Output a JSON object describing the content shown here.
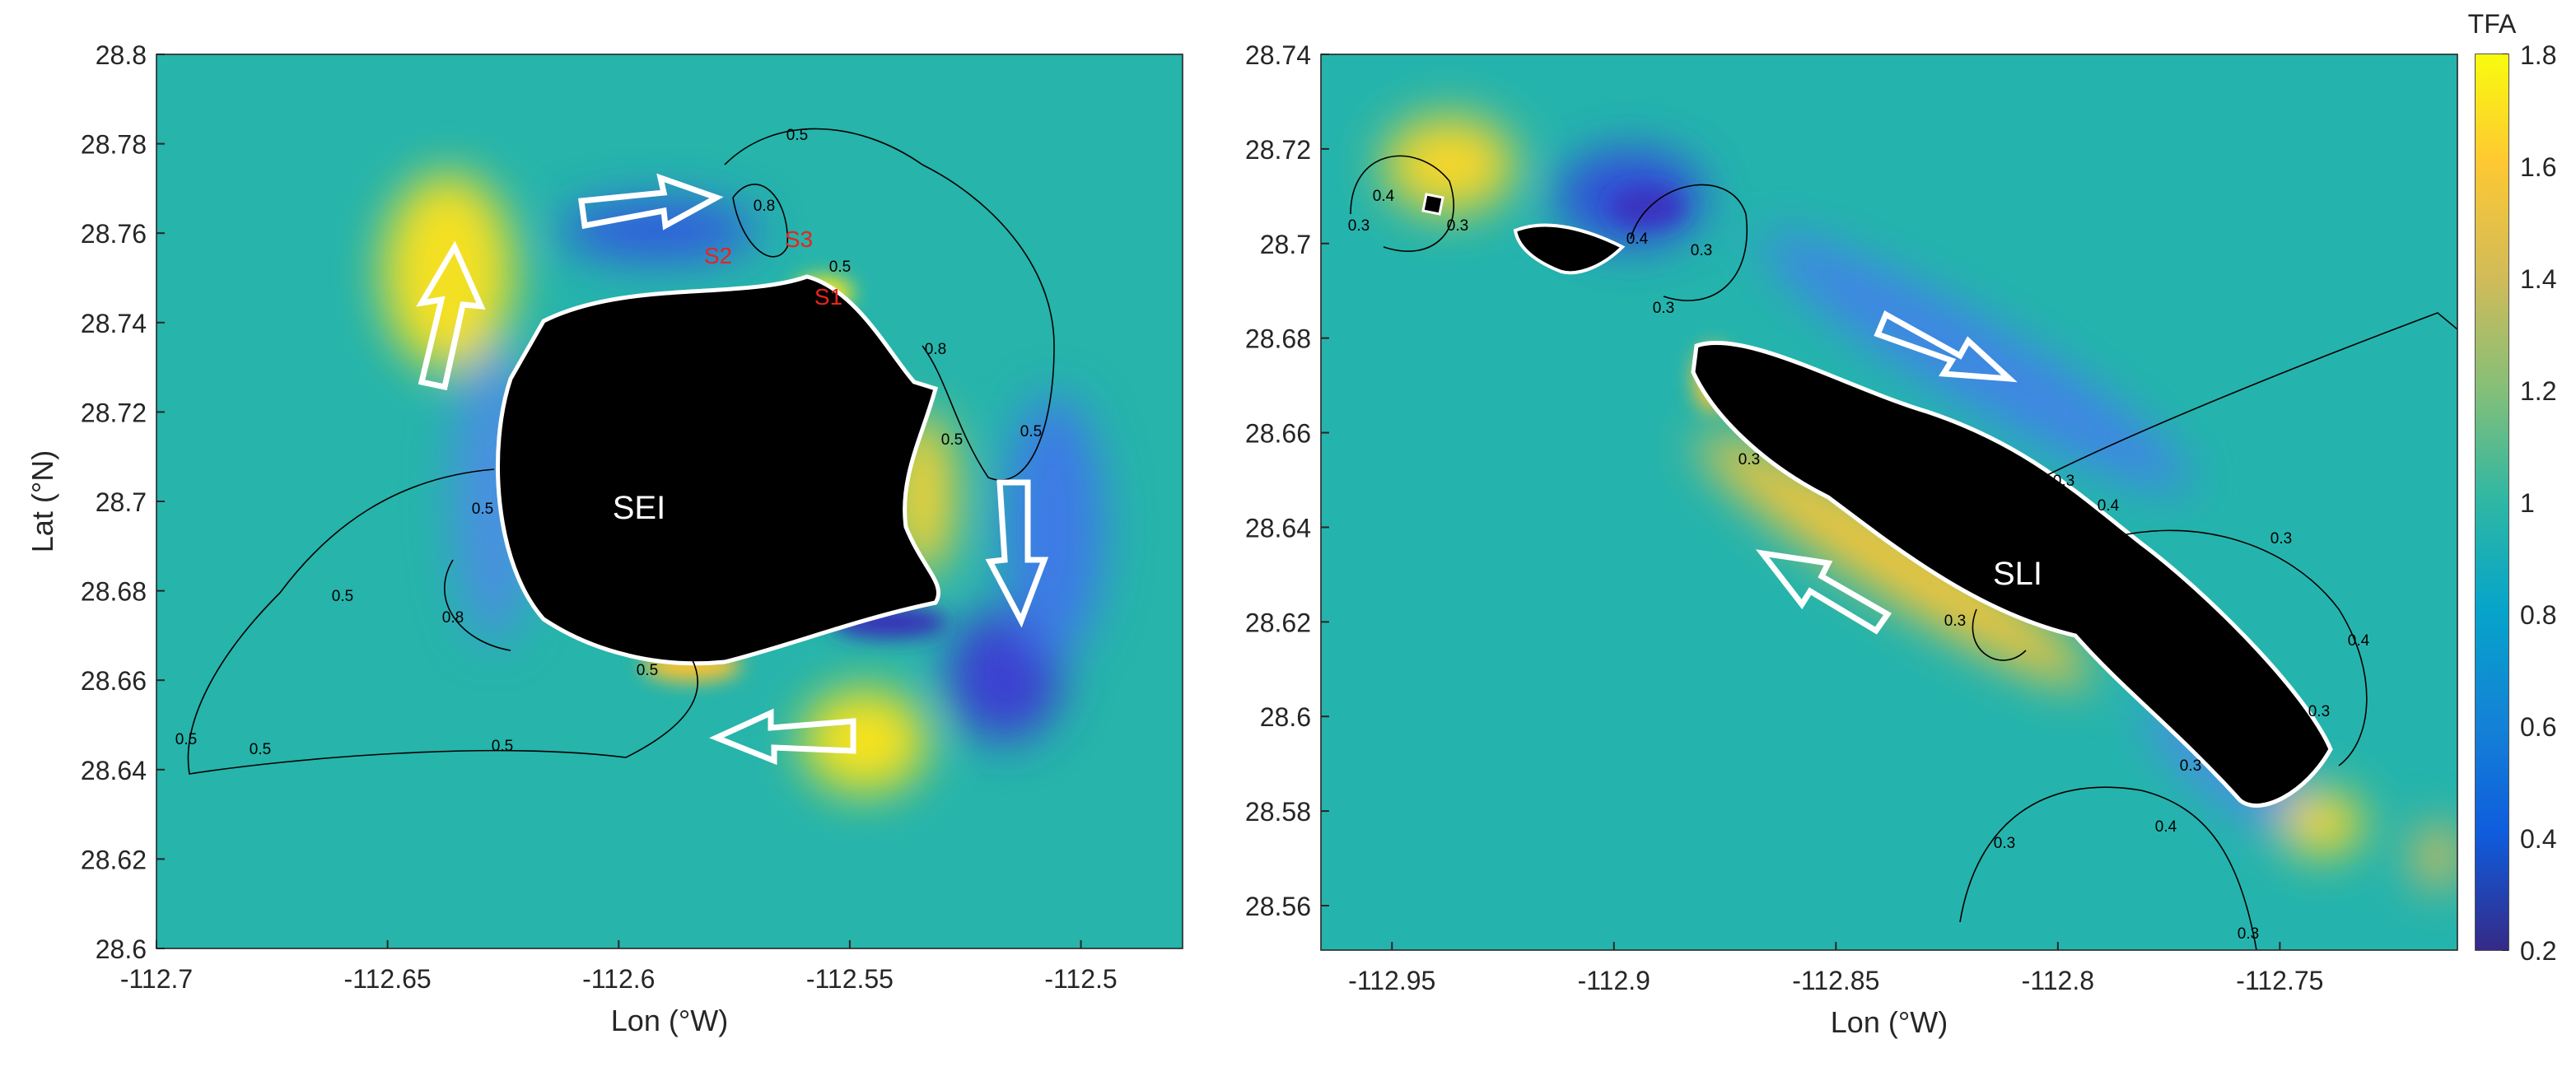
{
  "chart_data": [
    {
      "type": "heatmap",
      "xlabel": "Lon (°W)",
      "ylabel": "Lat (°N)",
      "xlim": [
        -112.7,
        -112.478
      ],
      "xticks": [
        -112.7,
        -112.65,
        -112.6,
        -112.55,
        -112.5
      ],
      "ylim": [
        28.6,
        28.8
      ],
      "yticks": [
        28.6,
        28.62,
        28.64,
        28.66,
        28.68,
        28.7,
        28.72,
        28.74,
        28.76,
        28.78,
        28.8
      ],
      "annotations": [
        "SEI",
        "S1",
        "S2",
        "S3"
      ],
      "contour_labels": [
        0.5,
        0.8,
        0.5,
        0.8,
        0.5,
        0.5,
        0.5,
        0.5,
        0.8,
        0.5,
        0.5,
        0.5,
        0.5
      ]
    },
    {
      "type": "heatmap",
      "xlabel": "Lon (°W)",
      "xlim": [
        -112.966,
        -112.71
      ],
      "xticks": [
        -112.95,
        -112.9,
        -112.85,
        -112.8,
        -112.75
      ],
      "ylim": [
        28.5506,
        28.74
      ],
      "yticks": [
        28.56,
        28.58,
        28.6,
        28.62,
        28.64,
        28.66,
        28.68,
        28.7,
        28.72,
        28.74
      ],
      "annotations": [
        "SLI"
      ],
      "contour_labels": [
        0.4,
        0.3,
        0.3,
        0.4,
        0.3,
        0.3,
        0.3,
        0.4,
        0.3,
        0.4,
        0.3,
        0.3,
        0.3,
        0.4,
        0.3,
        0.3,
        0.3
      ],
      "colorbar": {
        "title": "TFA",
        "lim": [
          0.2,
          1.8
        ],
        "ticks": [
          0.2,
          0.4,
          0.6,
          0.8,
          1,
          1.2,
          1.4,
          1.6,
          1.8
        ]
      }
    }
  ]
}
